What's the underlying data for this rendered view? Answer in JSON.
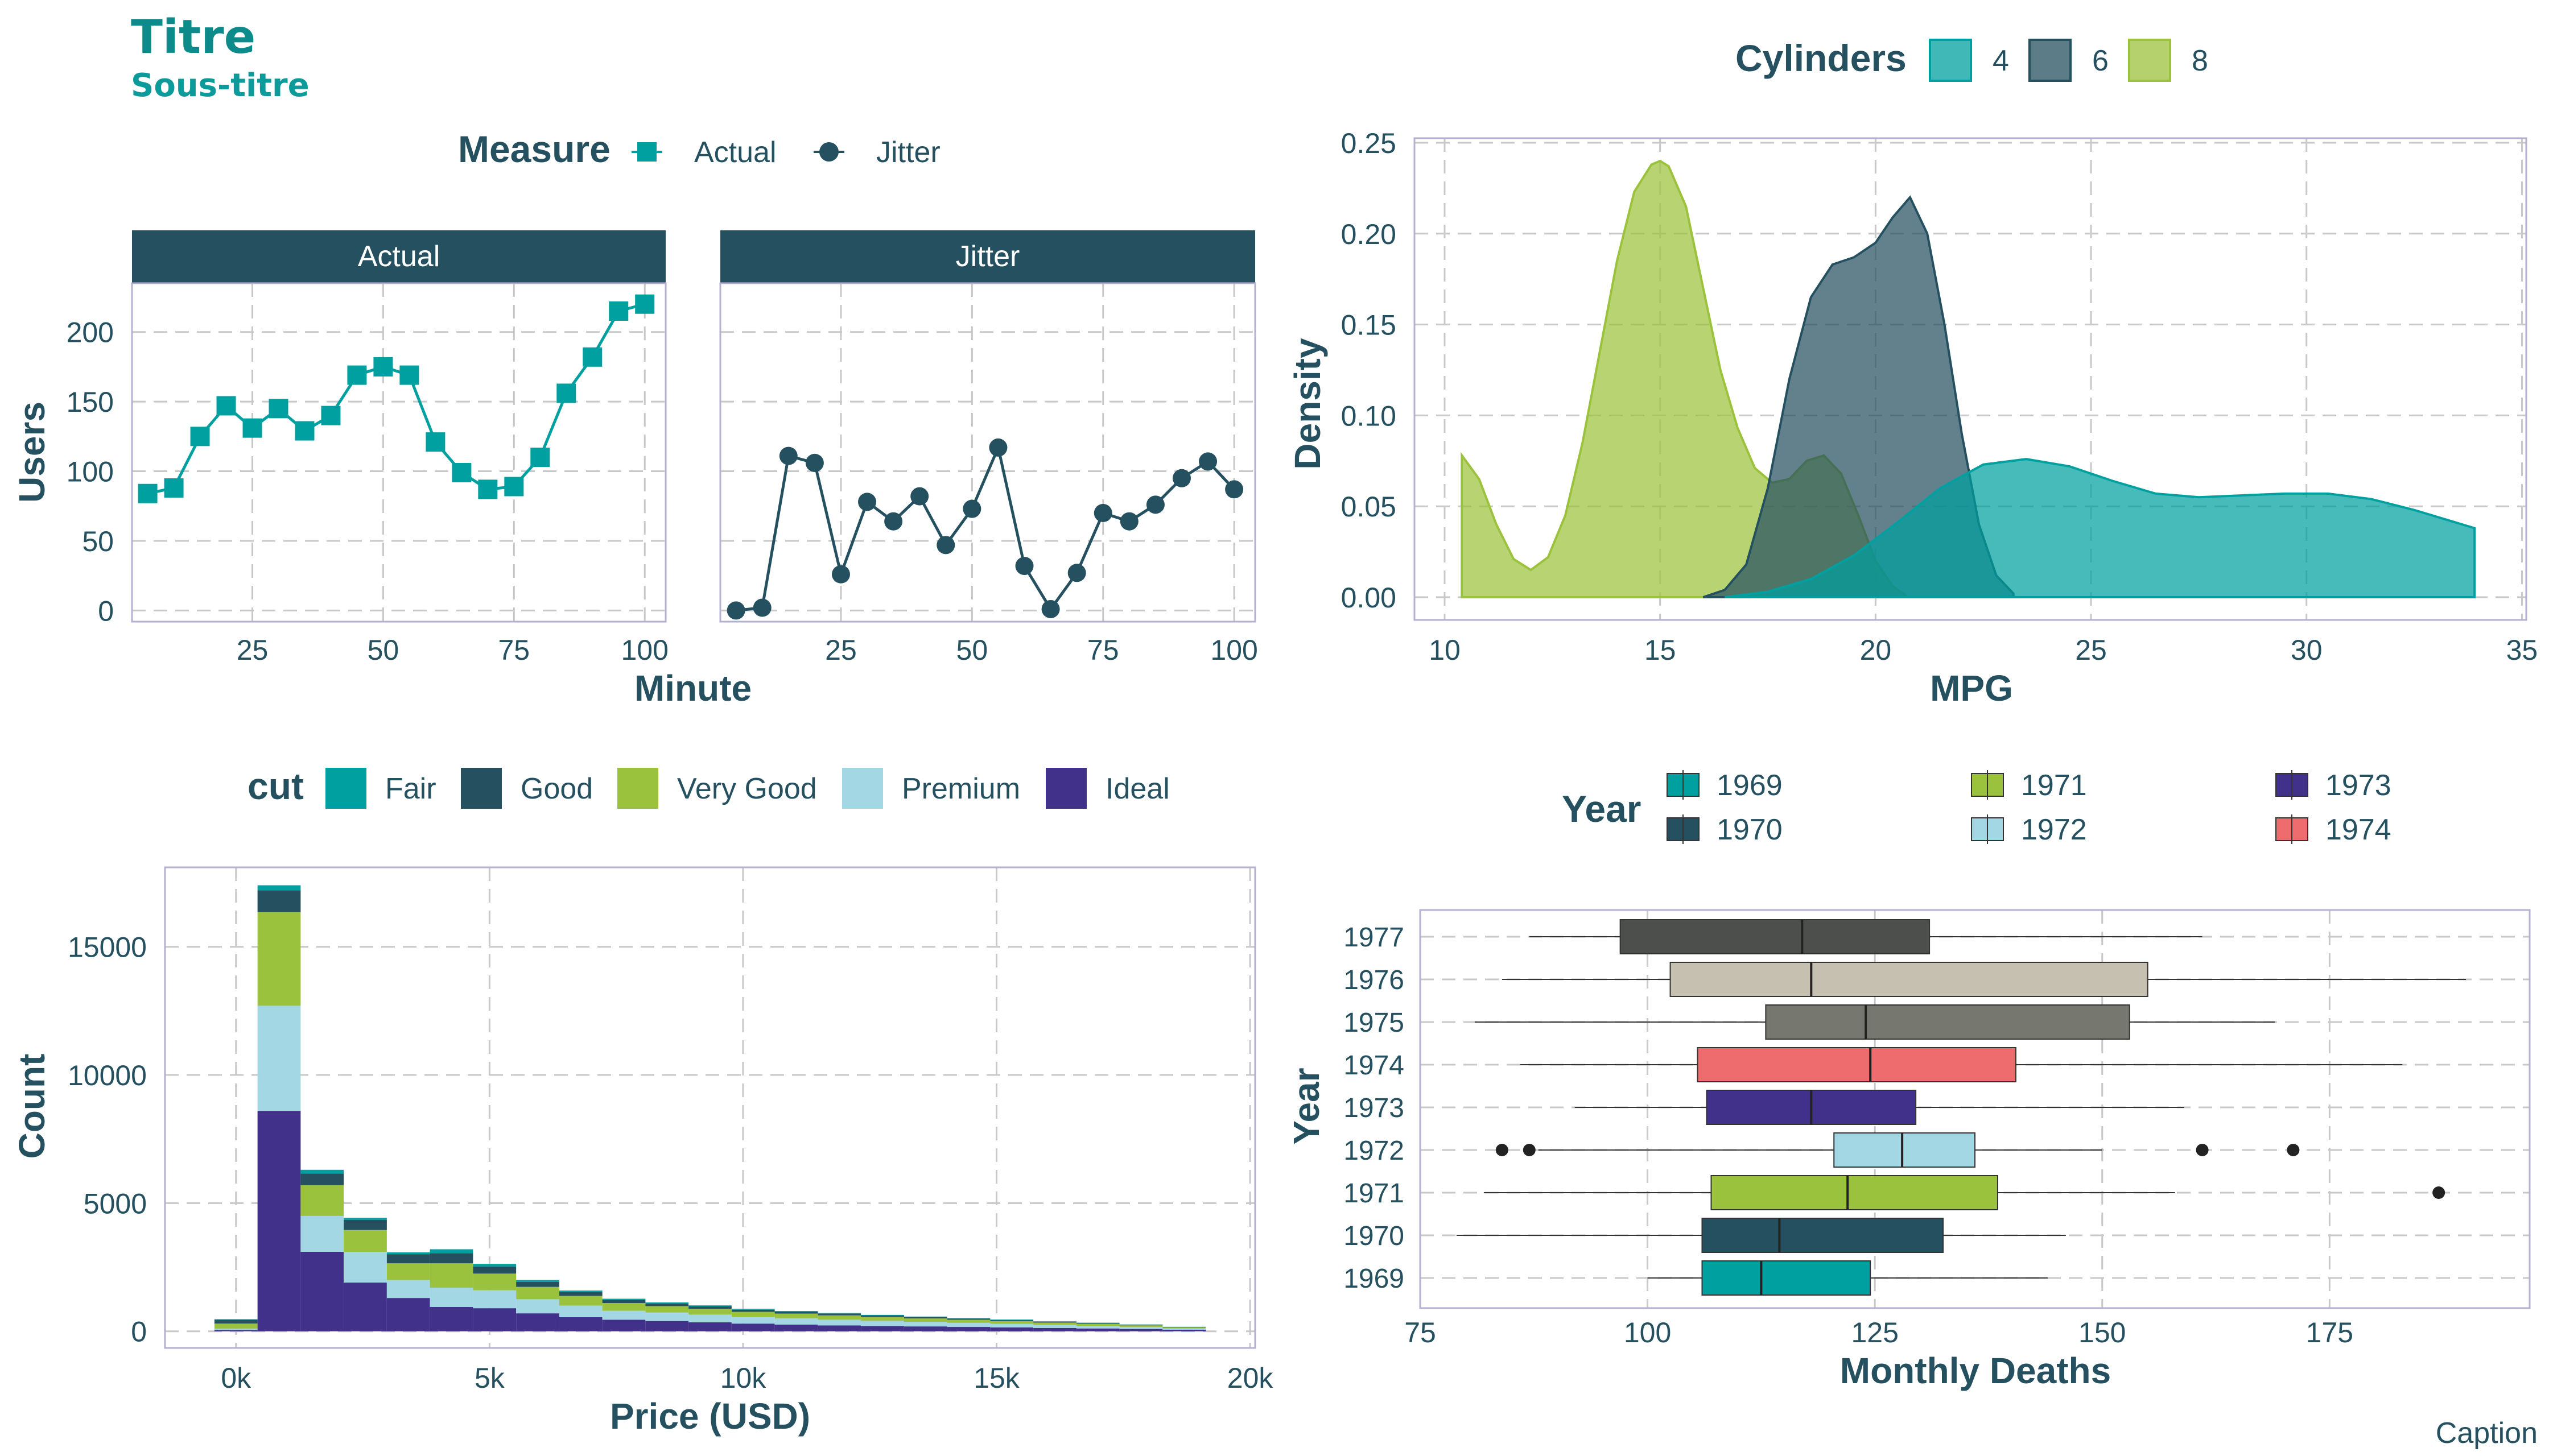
{
  "header": {
    "title": "Titre",
    "subtitle": "Sous-titre",
    "caption": "Caption"
  },
  "colors": {
    "text": "#25505f",
    "teal": "#00a0a0",
    "dark_slate": "#25505f",
    "yellow_green": "#9bc23c",
    "light_blue": "#a3d7e3",
    "indigo": "#41318a",
    "salmon": "#ee6b6e",
    "gray": "#76776f",
    "beige": "#c5c0b0",
    "charcoal": "#4d4f4c",
    "grid": "#c8c8c8",
    "frame": "#b4b0cf"
  },
  "chart_data": [
    {
      "id": "line_panels",
      "type": "line",
      "legend_title": "Measure",
      "legend_position": "top",
      "xlabel": "Minute",
      "ylabel": "Users",
      "xlim": [
        2,
        104
      ],
      "ylim": [
        -8,
        235
      ],
      "xticks": [
        25,
        50,
        75,
        100
      ],
      "yticks": [
        0,
        50,
        100,
        150,
        200
      ],
      "grid": true,
      "facets": [
        "Actual",
        "Jitter"
      ],
      "series": [
        {
          "name": "Actual",
          "marker": "square",
          "x": [
            5,
            10,
            15,
            20,
            25,
            30,
            35,
            40,
            45,
            50,
            55,
            60,
            65,
            70,
            75,
            80,
            85,
            90,
            95,
            100
          ],
          "values": [
            84,
            88,
            125,
            147,
            131,
            145,
            129,
            140,
            169,
            175,
            169,
            121,
            99,
            87,
            89,
            110,
            156,
            182,
            215,
            220
          ]
        },
        {
          "name": "Jitter",
          "marker": "circle",
          "x": [
            5,
            10,
            15,
            20,
            25,
            30,
            35,
            40,
            45,
            50,
            55,
            60,
            65,
            70,
            75,
            80,
            85,
            90,
            95,
            100
          ],
          "values": [
            0,
            2,
            111,
            106,
            26,
            78,
            64,
            82,
            47,
            73,
            117,
            32,
            1,
            27,
            70,
            64,
            76,
            95,
            107,
            87
          ]
        }
      ]
    },
    {
      "id": "density",
      "type": "area",
      "legend_title": "Cylinders",
      "legend_position": "top",
      "xlabel": "MPG",
      "ylabel": "Density",
      "xlim": [
        9.3,
        35.1
      ],
      "ylim": [
        -0.0125,
        0.2525
      ],
      "xticks": [
        10,
        15,
        20,
        25,
        30,
        35
      ],
      "yticks": [
        0.0,
        0.05,
        0.1,
        0.15,
        0.2,
        0.25
      ],
      "ytick_labels": [
        "0.00",
        "0.05",
        "0.10",
        "0.15",
        "0.20",
        "0.25"
      ],
      "grid": true,
      "series": [
        {
          "name": "8",
          "x": [
            10.4,
            10.8,
            11.2,
            11.6,
            12.0,
            12.4,
            12.8,
            13.2,
            13.6,
            14.0,
            14.4,
            14.8,
            15.0,
            15.2,
            15.6,
            16.0,
            16.4,
            16.8,
            17.2,
            17.6,
            18.0,
            18.4,
            18.8,
            19.2,
            19.6,
            20.0,
            20.4,
            20.7
          ],
          "values": [
            0.078,
            0.065,
            0.04,
            0.021,
            0.015,
            0.022,
            0.045,
            0.085,
            0.135,
            0.185,
            0.223,
            0.238,
            0.24,
            0.237,
            0.215,
            0.17,
            0.125,
            0.093,
            0.071,
            0.063,
            0.065,
            0.075,
            0.078,
            0.068,
            0.045,
            0.02,
            0.006,
            0.001
          ]
        },
        {
          "name": "6",
          "x": [
            16.0,
            16.5,
            17.0,
            17.5,
            18.0,
            18.5,
            19.0,
            19.5,
            20.0,
            20.4,
            20.8,
            21.2,
            21.6,
            22.0,
            22.4,
            22.8,
            23.2
          ],
          "values": [
            0.0,
            0.004,
            0.018,
            0.06,
            0.12,
            0.165,
            0.183,
            0.187,
            0.195,
            0.209,
            0.22,
            0.2,
            0.15,
            0.09,
            0.04,
            0.012,
            0.002
          ]
        },
        {
          "name": "4",
          "x": [
            16.5,
            17.5,
            18.5,
            19.5,
            20.5,
            21.5,
            22.5,
            23.5,
            24.5,
            25.5,
            26.5,
            27.5,
            28.5,
            29.5,
            30.5,
            31.5,
            32.5,
            33.9
          ],
          "values": [
            0.0,
            0.003,
            0.01,
            0.023,
            0.041,
            0.06,
            0.073,
            0.076,
            0.072,
            0.064,
            0.057,
            0.055,
            0.056,
            0.057,
            0.057,
            0.054,
            0.048,
            0.038
          ]
        }
      ]
    },
    {
      "id": "histogram",
      "type": "bar",
      "legend_title": "cut",
      "legend_position": "top",
      "xlabel": "Price (USD)",
      "ylabel": "Count",
      "xlim": [
        -1400,
        20100
      ],
      "ylim": [
        -650,
        18100
      ],
      "xticks": [
        0,
        5000,
        10000,
        15000,
        20000
      ],
      "xtick_labels": [
        "0k",
        "5k",
        "10k",
        "15k",
        "20k"
      ],
      "yticks": [
        0,
        5000,
        10000,
        15000
      ],
      "grid": true,
      "bin_width": 850,
      "bin_centers": [
        0,
        850,
        1700,
        2550,
        3400,
        4250,
        5100,
        5950,
        6800,
        7650,
        8500,
        9350,
        10200,
        11050,
        11900,
        12750,
        13600,
        14450,
        15300,
        16150,
        17000,
        17850,
        18700
      ],
      "series": [
        {
          "name": "Ideal",
          "values": [
            50,
            8600,
            3100,
            1900,
            1300,
            950,
            900,
            700,
            550,
            450,
            400,
            350,
            300,
            260,
            230,
            210,
            190,
            170,
            150,
            130,
            110,
            90,
            60
          ]
        },
        {
          "name": "Premium",
          "values": [
            50,
            4100,
            1400,
            1200,
            700,
            750,
            700,
            550,
            450,
            350,
            330,
            300,
            260,
            240,
            220,
            200,
            180,
            160,
            140,
            120,
            100,
            80,
            50
          ]
        },
        {
          "name": "Very Good",
          "values": [
            200,
            3650,
            1200,
            850,
            650,
            950,
            650,
            480,
            380,
            300,
            250,
            230,
            200,
            190,
            170,
            150,
            130,
            120,
            110,
            90,
            80,
            60,
            40
          ]
        },
        {
          "name": "Good",
          "values": [
            150,
            850,
            450,
            400,
            350,
            400,
            280,
            200,
            150,
            120,
            100,
            90,
            80,
            70,
            60,
            55,
            50,
            45,
            40,
            35,
            30,
            25,
            15
          ]
        },
        {
          "name": "Fair",
          "values": [
            20,
            200,
            150,
            80,
            80,
            150,
            100,
            70,
            60,
            50,
            45,
            40,
            35,
            30,
            30,
            25,
            25,
            20,
            20,
            15,
            15,
            10,
            10
          ]
        }
      ]
    },
    {
      "id": "boxplot",
      "type": "box",
      "legend_title": "Year",
      "legend_position": "top",
      "xlabel": "Monthly Deaths",
      "ylabel": "Year",
      "xlim": [
        75,
        197
      ],
      "xticks": [
        75,
        100,
        125,
        150,
        175
      ],
      "grid": true,
      "categories": [
        "1969",
        "1970",
        "1971",
        "1972",
        "1973",
        "1974",
        "1975",
        "1976",
        "1977"
      ],
      "boxes": [
        {
          "name": "1969",
          "min": 100,
          "q1": 106,
          "median": 112.5,
          "q3": 124.5,
          "max": 144,
          "outliers": []
        },
        {
          "name": "1970",
          "min": 79,
          "q1": 106,
          "median": 114.5,
          "q3": 132.5,
          "max": 146,
          "outliers": []
        },
        {
          "name": "1971",
          "min": 82,
          "q1": 107,
          "median": 122,
          "q3": 138.5,
          "max": 158,
          "outliers": [
            187
          ]
        },
        {
          "name": "1972",
          "min": 88,
          "q1": 120.5,
          "median": 128,
          "q3": 136,
          "max": 150,
          "outliers": [
            84,
            87,
            161,
            171
          ]
        },
        {
          "name": "1973",
          "min": 92,
          "q1": 106.5,
          "median": 118,
          "q3": 129.5,
          "max": 159,
          "outliers": []
        },
        {
          "name": "1974",
          "min": 86,
          "q1": 105.5,
          "median": 124.5,
          "q3": 140.5,
          "max": 183,
          "outliers": []
        },
        {
          "name": "1975",
          "min": 81,
          "q1": 113,
          "median": 124,
          "q3": 153,
          "max": 169,
          "outliers": []
        },
        {
          "name": "1976",
          "min": 84,
          "q1": 102.5,
          "median": 118,
          "q3": 155,
          "max": 190,
          "outliers": []
        },
        {
          "name": "1977",
          "min": 87,
          "q1": 97,
          "median": 117,
          "q3": 131,
          "max": 161,
          "outliers": []
        }
      ]
    }
  ]
}
